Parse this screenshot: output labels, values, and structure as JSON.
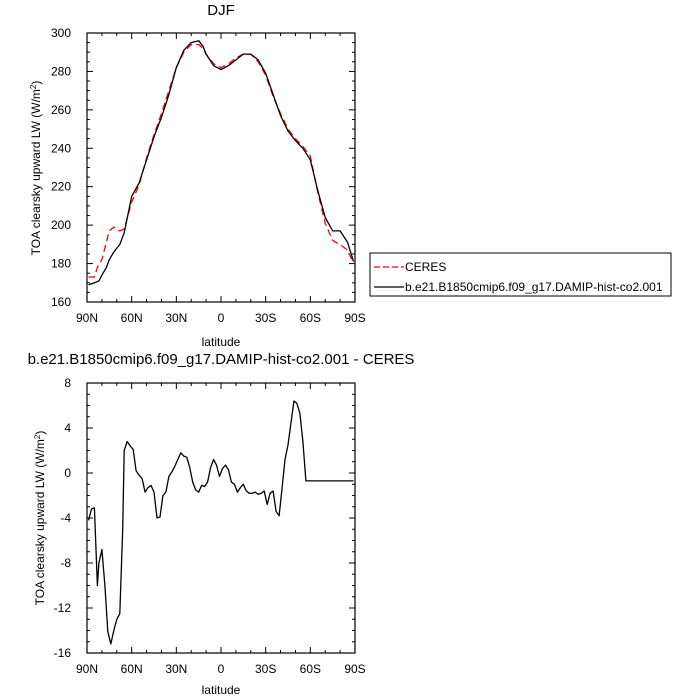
{
  "chart_data": [
    {
      "type": "line",
      "title": "DJF",
      "xlabel": "latitude",
      "ylabel": "TOA clearsky upward LW (W/m",
      "ylabel_sup": "2",
      "ylabel_end": ")",
      "xlim": [
        90,
        -90
      ],
      "ylim": [
        160,
        300
      ],
      "x_ticks": [
        90,
        60,
        30,
        0,
        -30,
        -60,
        -90
      ],
      "x_tick_labels": [
        "90N",
        "60N",
        "30N",
        "0",
        "30S",
        "60S",
        "90S"
      ],
      "y_ticks": [
        160,
        180,
        200,
        220,
        240,
        260,
        280,
        300
      ],
      "y_tick_labels": [
        "160",
        "180",
        "200",
        "220",
        "240",
        "260",
        "280",
        "300"
      ],
      "legend_position": "right",
      "series": [
        {
          "name": "CERES",
          "style": "dashed",
          "color": "#ff0000",
          "x": [
            89,
            85,
            83,
            80,
            75,
            72,
            68,
            65,
            60,
            55,
            50,
            45,
            40,
            35,
            30,
            25,
            20,
            15,
            12,
            10,
            5,
            0,
            -5,
            -10,
            -15,
            -20,
            -25,
            -30,
            -35,
            -40,
            -45,
            -50,
            -55,
            -60,
            -65,
            -70,
            -75,
            -80,
            -85,
            -89
          ],
          "y": [
            173,
            173,
            178,
            182,
            197,
            199,
            197,
            198,
            212,
            221,
            235,
            247,
            258,
            270,
            282,
            290,
            294,
            294,
            292,
            289,
            284,
            282,
            284,
            287,
            289,
            289,
            285,
            278,
            267,
            258,
            250,
            245,
            241,
            236,
            217,
            201,
            192,
            190,
            187,
            180
          ]
        },
        {
          "name": "b.e21.B1850cmip6.f09_g17.DAMIP-hist-co2.001",
          "style": "solid",
          "color": "#000000",
          "x": [
            89,
            85,
            82,
            80,
            77,
            75,
            72,
            68,
            65,
            60,
            55,
            50,
            45,
            40,
            35,
            30,
            25,
            20,
            15,
            12,
            10,
            5,
            0,
            -5,
            -10,
            -15,
            -20,
            -25,
            -30,
            -35,
            -40,
            -45,
            -50,
            -55,
            -60,
            -65,
            -70,
            -75,
            -80,
            -85,
            -89
          ],
          "y": [
            169,
            170,
            171,
            174,
            178,
            182,
            186,
            190,
            196,
            215,
            222,
            234,
            246,
            256,
            268,
            282,
            291,
            295,
            296,
            293,
            289,
            283,
            281,
            283,
            286,
            289,
            289,
            286,
            279,
            268,
            257,
            249,
            244,
            240,
            234,
            218,
            204,
            197,
            197,
            191,
            181
          ]
        }
      ]
    },
    {
      "type": "line",
      "title": "b.e21.B1850cmip6.f09_g17.DAMIP-hist-co2.001 - CERES",
      "xlabel": "latitude",
      "ylabel": "TOA clearsky upward LW (W/m",
      "ylabel_sup": "2",
      "ylabel_end": ")",
      "xlim": [
        90,
        -90
      ],
      "ylim": [
        -16,
        8
      ],
      "x_ticks": [
        90,
        60,
        30,
        0,
        -30,
        -60,
        -90
      ],
      "x_tick_labels": [
        "90N",
        "60N",
        "30N",
        "0",
        "30S",
        "60S",
        "90S"
      ],
      "y_ticks": [
        -16,
        -12,
        -8,
        -4,
        0,
        4,
        8
      ],
      "y_tick_labels": [
        "-16",
        "-12",
        "-8",
        "-4",
        "0",
        "4",
        "8"
      ],
      "series": [
        {
          "style": "solid",
          "color": "#000000",
          "x": [
            89,
            87,
            85,
            83,
            82,
            80,
            78,
            76,
            74,
            72,
            70,
            68,
            66,
            65,
            63,
            61,
            59,
            57,
            55,
            53,
            51,
            49,
            47,
            45,
            43,
            41,
            39,
            37,
            35,
            33,
            31,
            29,
            27,
            25,
            23,
            21,
            19,
            17,
            15,
            13,
            11,
            9,
            7,
            5,
            3,
            1,
            -1,
            -3,
            -5,
            -7,
            -9,
            -11,
            -13,
            -15,
            -17,
            -19,
            -21,
            -23,
            -25,
            -27,
            -29,
            -31,
            -33,
            -35,
            -37,
            -39,
            -41,
            -43,
            -45,
            -47,
            -49,
            -51,
            -53,
            -55,
            -57,
            -59,
            -61,
            -63,
            -65,
            -67,
            -69,
            -71,
            -73,
            -75,
            -77,
            -79,
            -81,
            -83,
            -85,
            -87,
            -89
          ],
          "y": [
            -4.2,
            -3.2,
            -3.1,
            -10,
            -8,
            -6.8,
            -10,
            -14.1,
            -15.2,
            -14,
            -13,
            -12.5,
            -5,
            2,
            2.8,
            2.4,
            2.1,
            0.2,
            -0.2,
            -0.5,
            -1.7,
            -1.3,
            -1.1,
            -1.7,
            -4,
            -3.9,
            -2,
            -1.7,
            -0.3,
            0.1,
            0.6,
            1.2,
            1.8,
            1.5,
            1.4,
            0.5,
            -0.8,
            -1.5,
            -1.7,
            -1.1,
            -1.2,
            -0.8,
            0.5,
            1.2,
            0.7,
            -0.3,
            0.4,
            0.7,
            0.3,
            -0.8,
            -1,
            -1.7,
            -1.3,
            -1,
            -1.6,
            -1.8,
            -1.8,
            -1.7,
            -1.9,
            -1.8,
            -1.6,
            -2.8,
            -1.8,
            -1.6,
            -3.4,
            -3.8,
            -1.4,
            1.2,
            2.5,
            4.5,
            6.4,
            6.2,
            5.3,
            2.8,
            -0.7,
            -0.7,
            -0.7,
            -0.7,
            -0.7,
            -0.7,
            -0.7,
            -0.7,
            -0.7,
            -0.7,
            -0.7,
            -0.7,
            -0.7,
            -0.7,
            -0.7,
            -0.7,
            -0.7
          ]
        }
      ]
    }
  ]
}
